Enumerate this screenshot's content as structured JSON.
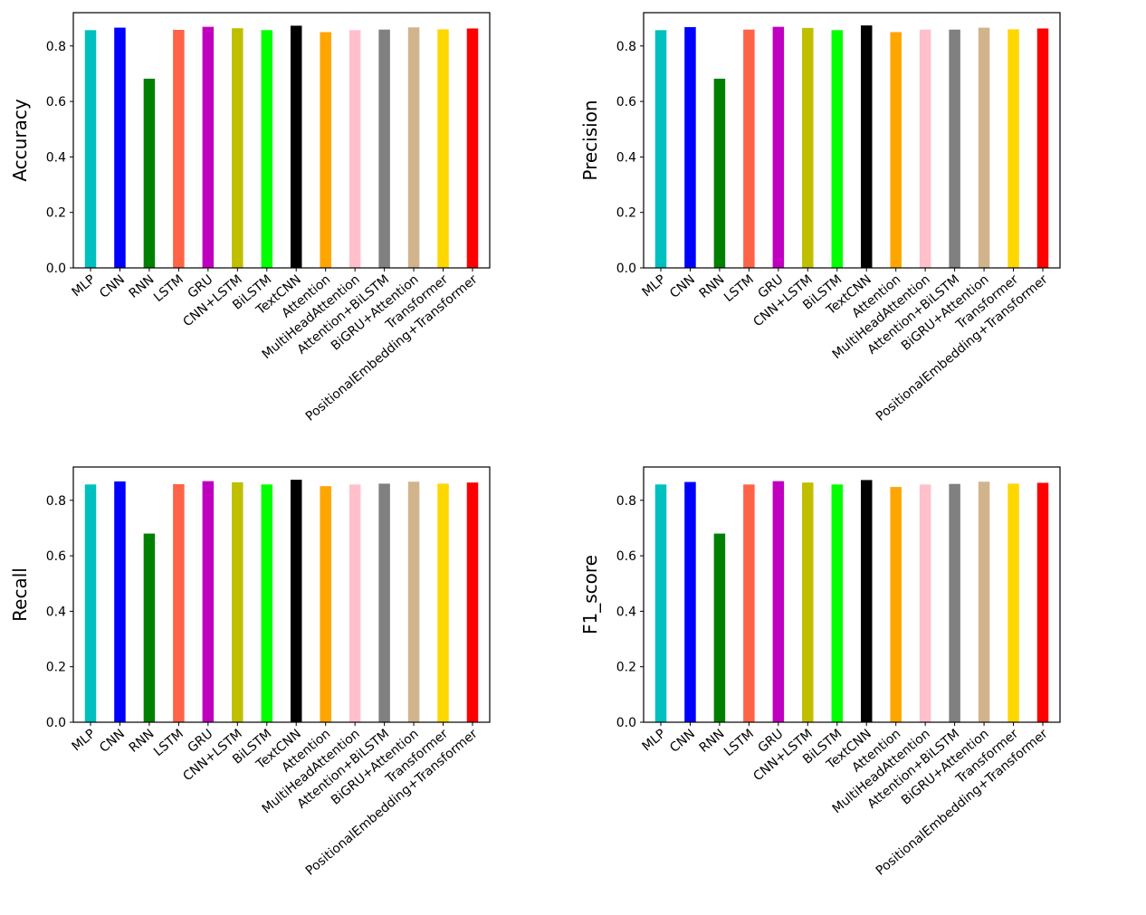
{
  "chart_data": [
    {
      "type": "bar",
      "ylabel": "Accuracy",
      "ylim": [
        0,
        0.92
      ],
      "yticks": [
        "0.0",
        "0.2",
        "0.4",
        "0.6",
        "0.8"
      ],
      "categories": [
        "MLP",
        "CNN",
        "RNN",
        "LSTM",
        "GRU",
        "CNN+LSTM",
        "BiLSTM",
        "TextCNN",
        "Attention",
        "MultiHeadAttention",
        "Attention+BiLSTM",
        "BiGRU+Attention",
        "Transformer",
        "PositionalEmbedding+Transformer"
      ],
      "values": [
        0.857,
        0.866,
        0.682,
        0.858,
        0.869,
        0.864,
        0.857,
        0.873,
        0.85,
        0.857,
        0.859,
        0.867,
        0.86,
        0.863
      ],
      "colors": [
        "#00bfbf",
        "#0000ff",
        "#008000",
        "#ff6347",
        "#bf00bf",
        "#bfbf00",
        "#00ff00",
        "#000000",
        "#ffa500",
        "#ffc0cb",
        "#808080",
        "#d2b48c",
        "#ffd700",
        "#ff0000"
      ],
      "grid": false
    },
    {
      "type": "bar",
      "ylabel": "Precision",
      "ylim": [
        0,
        0.92
      ],
      "yticks": [
        "0.0",
        "0.2",
        "0.4",
        "0.6",
        "0.8"
      ],
      "categories": [
        "MLP",
        "CNN",
        "RNN",
        "LSTM",
        "GRU",
        "CNN+LSTM",
        "BiLSTM",
        "TextCNN",
        "Attention",
        "MultiHeadAttention",
        "Attention+BiLSTM",
        "BiGRU+Attention",
        "Transformer",
        "PositionalEmbedding+Transformer"
      ],
      "values": [
        0.857,
        0.868,
        0.682,
        0.859,
        0.869,
        0.865,
        0.857,
        0.874,
        0.85,
        0.859,
        0.859,
        0.866,
        0.86,
        0.863
      ],
      "colors": [
        "#00bfbf",
        "#0000ff",
        "#008000",
        "#ff6347",
        "#bf00bf",
        "#bfbf00",
        "#00ff00",
        "#000000",
        "#ffa500",
        "#ffc0cb",
        "#808080",
        "#d2b48c",
        "#ffd700",
        "#ff0000"
      ],
      "grid": false
    },
    {
      "type": "bar",
      "ylabel": "Recall",
      "ylim": [
        0,
        0.92
      ],
      "yticks": [
        "0.0",
        "0.2",
        "0.4",
        "0.6",
        "0.8"
      ],
      "categories": [
        "MLP",
        "CNN",
        "RNN",
        "LSTM",
        "GRU",
        "CNN+LSTM",
        "BiLSTM",
        "TextCNN",
        "Attention",
        "MultiHeadAttention",
        "Attention+BiLSTM",
        "BiGRU+Attention",
        "Transformer",
        "PositionalEmbedding+Transformer"
      ],
      "values": [
        0.857,
        0.868,
        0.68,
        0.858,
        0.869,
        0.865,
        0.857,
        0.874,
        0.851,
        0.857,
        0.86,
        0.867,
        0.86,
        0.864
      ],
      "colors": [
        "#00bfbf",
        "#0000ff",
        "#008000",
        "#ff6347",
        "#bf00bf",
        "#bfbf00",
        "#00ff00",
        "#000000",
        "#ffa500",
        "#ffc0cb",
        "#808080",
        "#d2b48c",
        "#ffd700",
        "#ff0000"
      ],
      "grid": false
    },
    {
      "type": "bar",
      "ylabel": "F1_score",
      "ylim": [
        0,
        0.92
      ],
      "yticks": [
        "0.0",
        "0.2",
        "0.4",
        "0.6",
        "0.8"
      ],
      "categories": [
        "MLP",
        "CNN",
        "RNN",
        "LSTM",
        "GRU",
        "CNN+LSTM",
        "BiLSTM",
        "TextCNN",
        "Attention",
        "MultiHeadAttention",
        "Attention+BiLSTM",
        "BiGRU+Attention",
        "Transformer",
        "PositionalEmbedding+Transformer"
      ],
      "values": [
        0.857,
        0.866,
        0.68,
        0.857,
        0.869,
        0.864,
        0.857,
        0.873,
        0.848,
        0.857,
        0.859,
        0.867,
        0.86,
        0.863
      ],
      "colors": [
        "#00bfbf",
        "#0000ff",
        "#008000",
        "#ff6347",
        "#bf00bf",
        "#bfbf00",
        "#00ff00",
        "#000000",
        "#ffa500",
        "#ffc0cb",
        "#808080",
        "#d2b48c",
        "#ffd700",
        "#ff0000"
      ],
      "grid": false
    }
  ]
}
